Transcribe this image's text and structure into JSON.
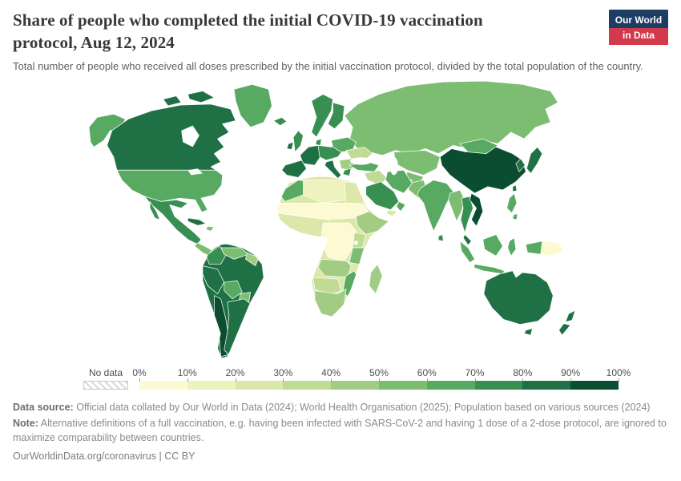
{
  "header": {
    "title": "Share of people who completed the initial COVID-19 vaccination protocol, Aug 12, 2024",
    "subtitle": "Total number of people who received all doses prescribed by the initial vaccination protocol, divided by the total population of the country.",
    "logo": {
      "line1": "Our World",
      "line2": "in Data",
      "navy": "#1d3d63",
      "red": "#d23a4b"
    }
  },
  "footer": {
    "data_source_label": "Data source:",
    "data_source_text": " Official data collated by Our World in Data (2024); World Health Organisation (2025); Population based on various sources (2024)",
    "note_label": "Note:",
    "note_text": " Alternative definitions of a full vaccination, e.g. having been infected with SARS-CoV-2 and having 1 dose of a 2-dose protocol, are ignored to maximize comparability between countries.",
    "license": "OurWorldinData.org/coronavirus | CC BY"
  },
  "chart_data": {
    "type": "heatmap",
    "variant": "world-choropleth",
    "title": "Share of people who completed the initial COVID-19 vaccination protocol",
    "date": "Aug 12, 2024",
    "unit": "%",
    "legend": {
      "no_data_label": "No data",
      "ticks": [
        "0%",
        "10%",
        "20%",
        "30%",
        "40%",
        "50%",
        "60%",
        "70%",
        "80%",
        "90%",
        "100%"
      ],
      "bins": [
        {
          "range": "0-10%",
          "color": "#fdfad3"
        },
        {
          "range": "10-20%",
          "color": "#eef2bf"
        },
        {
          "range": "20-30%",
          "color": "#dbe8a9"
        },
        {
          "range": "30-40%",
          "color": "#c0db93"
        },
        {
          "range": "40-50%",
          "color": "#a0cd83"
        },
        {
          "range": "50-60%",
          "color": "#7dbd72"
        },
        {
          "range": "60-70%",
          "color": "#58aa62"
        },
        {
          "range": "70-80%",
          "color": "#388f52"
        },
        {
          "range": "80-90%",
          "color": "#1f7145"
        },
        {
          "range": "90-100%",
          "color": "#0a4d30"
        }
      ]
    },
    "regions": [
      {
        "id": "canada",
        "name": "Canada",
        "value": 83,
        "color": "#1f7145"
      },
      {
        "id": "usa",
        "name": "United States",
        "value": 69,
        "color": "#58aa62"
      },
      {
        "id": "greenland",
        "name": "Greenland",
        "value": 66,
        "color": "#58aa62"
      },
      {
        "id": "mexico",
        "name": "Mexico",
        "value": 71,
        "color": "#388f52"
      },
      {
        "id": "central-america",
        "name": "Central America",
        "value": 58,
        "color": "#7dbd72"
      },
      {
        "id": "cuba",
        "name": "Cuba",
        "value": 88,
        "color": "#1f7145"
      },
      {
        "id": "hispaniola",
        "name": "Hispaniola",
        "value": 56,
        "color": "#7dbd72"
      },
      {
        "id": "brazil",
        "name": "Brazil",
        "value": 84,
        "color": "#1f7145"
      },
      {
        "id": "colombia",
        "name": "Colombia",
        "value": 71,
        "color": "#388f52"
      },
      {
        "id": "venezuela",
        "name": "Venezuela",
        "value": 50,
        "color": "#7dbd72"
      },
      {
        "id": "guyanas",
        "name": "Guyanas",
        "value": 45,
        "color": "#a0cd83"
      },
      {
        "id": "peru",
        "name": "Peru",
        "value": 83,
        "color": "#1f7145"
      },
      {
        "id": "bolivia",
        "name": "Bolivia",
        "value": 60,
        "color": "#58aa62"
      },
      {
        "id": "paraguay",
        "name": "Paraguay",
        "value": 55,
        "color": "#7dbd72"
      },
      {
        "id": "chile",
        "name": "Chile",
        "value": 92,
        "color": "#0a4d30"
      },
      {
        "id": "argentina",
        "name": "Argentina",
        "value": 82,
        "color": "#1f7145"
      },
      {
        "id": "iceland",
        "name": "Iceland",
        "value": 78,
        "color": "#388f52"
      },
      {
        "id": "uk",
        "name": "United Kingdom",
        "value": 75,
        "color": "#388f52"
      },
      {
        "id": "ireland",
        "name": "Ireland",
        "value": 81,
        "color": "#1f7145"
      },
      {
        "id": "scandinavia",
        "name": "Norway and Sweden",
        "value": 76,
        "color": "#388f52"
      },
      {
        "id": "finland",
        "name": "Finland",
        "value": 78,
        "color": "#388f52"
      },
      {
        "id": "france",
        "name": "France",
        "value": 80,
        "color": "#1f7145"
      },
      {
        "id": "central-europe",
        "name": "Germany and Central Europe",
        "value": 74,
        "color": "#388f52"
      },
      {
        "id": "iberia",
        "name": "Spain and Portugal",
        "value": 86,
        "color": "#1f7145"
      },
      {
        "id": "italy",
        "name": "Italy",
        "value": 81,
        "color": "#1f7145"
      },
      {
        "id": "poland-baltics",
        "name": "Poland and Baltics",
        "value": 62,
        "color": "#58aa62"
      },
      {
        "id": "ukraine",
        "name": "Ukraine",
        "value": 34,
        "color": "#c0db93"
      },
      {
        "id": "balkans",
        "name": "Balkans",
        "value": 46,
        "color": "#a0cd83"
      },
      {
        "id": "greece",
        "name": "Greece",
        "value": 76,
        "color": "#388f52"
      },
      {
        "id": "turkey",
        "name": "Turkey",
        "value": 68,
        "color": "#58aa62"
      },
      {
        "id": "russia",
        "name": "Russia",
        "value": 56,
        "color": "#7dbd72"
      },
      {
        "id": "kazakhstan",
        "name": "Kazakhstan",
        "value": 54,
        "color": "#7dbd72"
      },
      {
        "id": "central-asia",
        "name": "Central Asia",
        "value": 58,
        "color": "#7dbd72"
      },
      {
        "id": "mongolia",
        "name": "Mongolia",
        "value": 66,
        "color": "#58aa62"
      },
      {
        "id": "china",
        "name": "China",
        "value": 92,
        "color": "#0a4d30"
      },
      {
        "id": "south-korea",
        "name": "South Korea",
        "value": 86,
        "color": "#1f7145"
      },
      {
        "id": "japan",
        "name": "Japan",
        "value": 83,
        "color": "#1f7145"
      },
      {
        "id": "taiwan",
        "name": "Taiwan",
        "value": 88,
        "color": "#1f7145"
      },
      {
        "id": "afghanistan",
        "name": "Afghanistan",
        "value": 42,
        "color": "#a0cd83"
      },
      {
        "id": "pakistan",
        "name": "Pakistan",
        "value": 56,
        "color": "#7dbd72"
      },
      {
        "id": "india",
        "name": "India",
        "value": 67,
        "color": "#58aa62"
      },
      {
        "id": "sri-lanka",
        "name": "Sri Lanka",
        "value": 70,
        "color": "#388f52"
      },
      {
        "id": "myanmar-bangladesh",
        "name": "Myanmar and Bangladesh",
        "value": 59,
        "color": "#7dbd72"
      },
      {
        "id": "thailand",
        "name": "Thailand",
        "value": 72,
        "color": "#388f52"
      },
      {
        "id": "vietnam",
        "name": "Vietnam",
        "value": 90,
        "color": "#0a4d30"
      },
      {
        "id": "malaysia",
        "name": "Malaysia",
        "value": 84,
        "color": "#1f7145"
      },
      {
        "id": "philippines",
        "name": "Philippines",
        "value": 66,
        "color": "#58aa62"
      },
      {
        "id": "indonesia",
        "name": "Indonesia",
        "value": 63,
        "color": "#58aa62"
      },
      {
        "id": "papua-new-guinea",
        "name": "Papua New Guinea",
        "value": 3,
        "color": "#fdfad3"
      },
      {
        "id": "australia",
        "name": "Australia",
        "value": 84,
        "color": "#1f7145"
      },
      {
        "id": "new-zealand",
        "name": "New Zealand",
        "value": 80,
        "color": "#1f7145"
      },
      {
        "id": "iraq-syria",
        "name": "Iraq and Syria",
        "value": 32,
        "color": "#c0db93"
      },
      {
        "id": "iran",
        "name": "Iran",
        "value": 68,
        "color": "#58aa62"
      },
      {
        "id": "saudi-arabia",
        "name": "Saudi Arabia",
        "value": 72,
        "color": "#388f52"
      },
      {
        "id": "yemen",
        "name": "Yemen",
        "value": 28,
        "color": "#dbe8a9"
      },
      {
        "id": "oman",
        "name": "Oman",
        "value": 64,
        "color": "#58aa62"
      },
      {
        "id": "morocco",
        "name": "Morocco",
        "value": 63,
        "color": "#58aa62"
      },
      {
        "id": "algeria-libya",
        "name": "Algeria and Libya",
        "value": 16,
        "color": "#eef2bf"
      },
      {
        "id": "egypt",
        "name": "Egypt",
        "value": 26,
        "color": "#dbe8a9"
      },
      {
        "id": "sahel",
        "name": "Sahel (Mauritania-Mali-Niger-Chad-Sudan)",
        "value": 9,
        "color": "#fdfad3"
      },
      {
        "id": "west-africa",
        "name": "West Africa",
        "value": 28,
        "color": "#dbe8a9"
      },
      {
        "id": "horn-of-africa",
        "name": "Ethiopia and Horn of Africa",
        "value": 41,
        "color": "#a0cd83"
      },
      {
        "id": "central-africa",
        "name": "DR Congo and Central Africa",
        "value": 9,
        "color": "#fdfad3"
      },
      {
        "id": "kenya",
        "name": "Kenya",
        "value": 36,
        "color": "#c0db93"
      },
      {
        "id": "tanzania",
        "name": "Tanzania",
        "value": 54,
        "color": "#7dbd72"
      },
      {
        "id": "angola-zambia",
        "name": "Angola and Zambia",
        "value": 43,
        "color": "#a0cd83"
      },
      {
        "id": "mozambique-zimbabwe",
        "name": "Mozambique and Zimbabwe",
        "value": 61,
        "color": "#58aa62"
      },
      {
        "id": "namibia-botswana",
        "name": "Namibia and Botswana",
        "value": 38,
        "color": "#c0db93"
      },
      {
        "id": "south-africa",
        "name": "South Africa",
        "value": 40,
        "color": "#a0cd83"
      },
      {
        "id": "madagascar",
        "name": "Madagascar",
        "value": 42,
        "color": "#a0cd83"
      },
      {
        "id": "africa-other",
        "name": "Other Africa",
        "value": 25,
        "color": "#dbe8a9"
      }
    ]
  }
}
